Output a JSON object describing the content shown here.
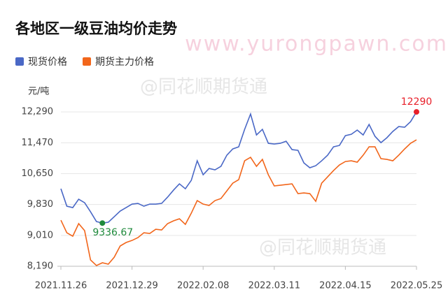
{
  "chart_data": {
    "type": "line",
    "title": "各地区一级豆油均价走势",
    "y_label": "元/吨",
    "watermarks": [
      "www.yurongpawn.com",
      "@同花顺期货通",
      "@同花顺期货通"
    ],
    "categories": [
      "2021.11.26",
      null,
      null,
      null,
      null,
      null,
      null,
      null,
      null,
      null,
      null,
      null,
      "2021.12.29",
      null,
      null,
      null,
      null,
      null,
      null,
      null,
      null,
      null,
      null,
      null,
      "2022.02.08",
      null,
      null,
      null,
      null,
      null,
      null,
      null,
      null,
      null,
      null,
      null,
      "2022.03.11",
      null,
      null,
      null,
      null,
      null,
      null,
      null,
      null,
      null,
      null,
      null,
      "2022.04.15",
      null,
      null,
      null,
      null,
      null,
      null,
      null,
      null,
      null,
      null,
      null,
      "2022.05.25"
    ],
    "series": [
      {
        "name": "现货价格",
        "color": "#4a68c6",
        "values": [
          10249,
          9785,
          9748,
          9971,
          9878,
          9637,
          9377,
          9336.67,
          9359,
          9507,
          9655,
          9748,
          9841,
          9860,
          9785,
          9841,
          9841,
          9860,
          10026,
          10212,
          10379,
          10249,
          10472,
          10991,
          10620,
          10787,
          10750,
          10843,
          11140,
          11306,
          11362,
          11826,
          12234,
          11677,
          11826,
          11455,
          11436,
          11455,
          11511,
          11288,
          11269,
          10935,
          10806,
          10861,
          10991,
          11140,
          11362,
          11399,
          11659,
          11696,
          11807,
          11677,
          11956,
          11640,
          11473,
          11603,
          11770,
          11900,
          11882,
          12030,
          12290
        ]
      },
      {
        "name": "期货主力价格",
        "color": "#f2661b",
        "values": [
          9414,
          9080,
          8988,
          9322,
          9136,
          8357,
          8209,
          8283,
          8246,
          8431,
          8728,
          8821,
          8876,
          8951,
          9080,
          9062,
          9173,
          9155,
          9322,
          9396,
          9451,
          9303,
          9600,
          9934,
          9841,
          9804,
          9934,
          9989,
          10193,
          10397,
          10490,
          10991,
          11084,
          10843,
          11028,
          10620,
          10323,
          10342,
          10360,
          10379,
          10119,
          10138,
          10119,
          9915,
          10397,
          10564,
          10731,
          10880,
          10972,
          10991,
          10954,
          11140,
          11362,
          11362,
          11047,
          11028,
          10991,
          11140,
          11306,
          11455,
          11547
        ]
      }
    ],
    "max_marker_color": "#e8202a",
    "min_marker_color": "#1f8a3c",
    "ylim": [
      8190,
      12700
    ],
    "yticks": [
      {
        "value": 8190,
        "label": "8,190"
      },
      {
        "value": 9010,
        "label": "9,010"
      },
      {
        "value": 9830,
        "label": "9,830"
      },
      {
        "value": 10650,
        "label": "10,650"
      },
      {
        "value": 11470,
        "label": "11,470"
      },
      {
        "value": 12290,
        "label": "12,290"
      }
    ],
    "grid": true,
    "legend": "top-left"
  }
}
